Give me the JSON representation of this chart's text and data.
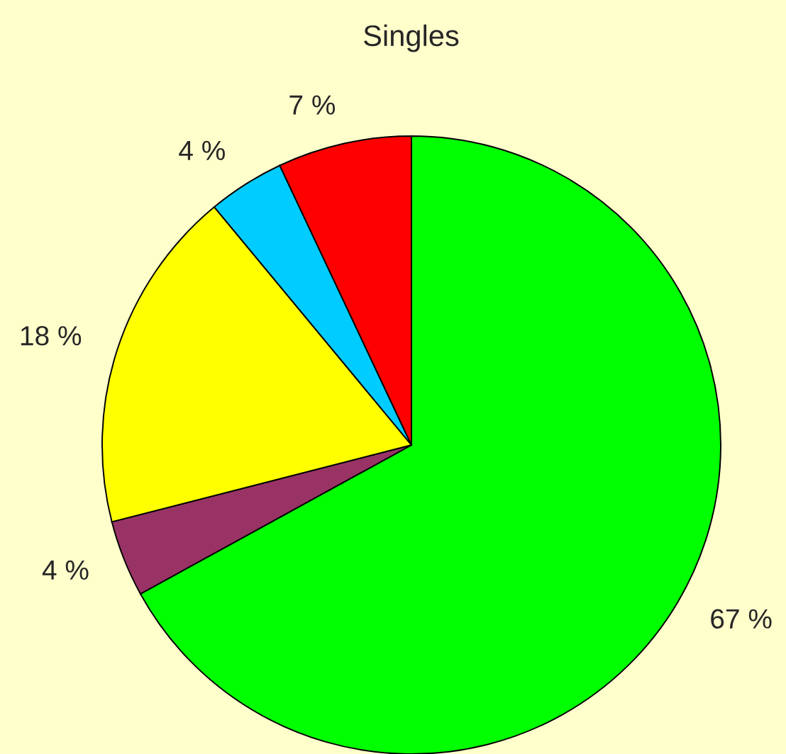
{
  "chart_data": {
    "type": "pie",
    "title": "Singles",
    "categories": [
      null,
      null,
      null,
      null,
      null
    ],
    "values": [
      67,
      4,
      18,
      4,
      7
    ],
    "colors": [
      "#00ff00",
      "#993366",
      "#ffff00",
      "#00ccff",
      "#ff0000"
    ],
    "value_labels": [
      "67 %",
      "4 %",
      "18 %",
      "4 %",
      "7 %"
    ]
  }
}
